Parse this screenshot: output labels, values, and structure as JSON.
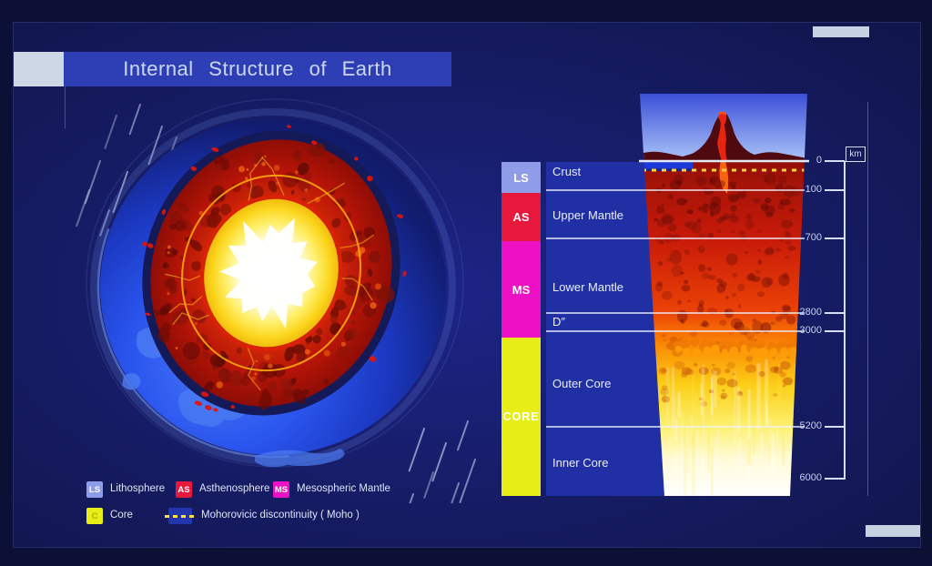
{
  "title": "Internal Structure of Earth",
  "colors": {
    "background_navy": "#0c1034",
    "panel_blue": "#1d2487",
    "banner_blue": "#2e3fb6",
    "title_block": "#cdd7e6",
    "label_panel": "#2030a4",
    "lithosphere": "#8f9ce8",
    "asthenosphere": "#e6183c",
    "mesosphere": "#ee10c4",
    "core_yellow": "#e7ee16",
    "scale_line": "#d5def2",
    "moho_dash": "#ffd23a"
  },
  "cross_section": {
    "bar": {
      "ls": "LS",
      "as": "AS",
      "ms": "MS",
      "core": "CORE"
    },
    "layers": {
      "crust": "Crust",
      "upper_mantle": "Upper Mantle",
      "lower_mantle": "Lower Mantle",
      "d_layer": "D″",
      "outer_core": "Outer Core",
      "inner_core": "Inner Core"
    },
    "scale": {
      "unit": "km",
      "ticks": [
        "0",
        "100",
        "700",
        "2800",
        "3000",
        "5200",
        "6000"
      ]
    }
  },
  "legend": {
    "items": [
      {
        "code": "LS",
        "label": "Lithosphere"
      },
      {
        "code": "AS",
        "label": "Asthenosphere"
      },
      {
        "code": "MS",
        "label": "Mesospheric Mantle"
      },
      {
        "code": "C",
        "label": "Core"
      }
    ],
    "moho_label": "Mohorovicic discontinuity ( Moho )"
  }
}
